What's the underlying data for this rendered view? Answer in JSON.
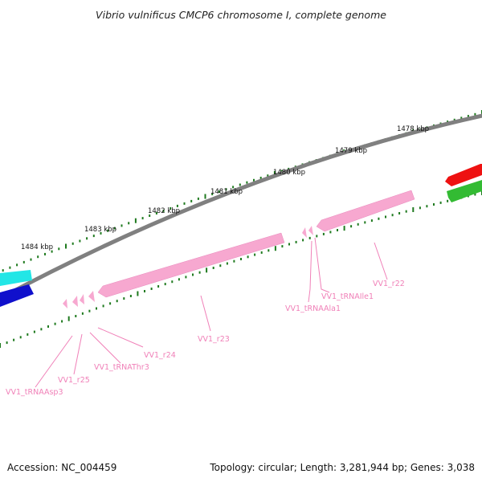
{
  "title": "Vibrio vulnificus CMCP6 chromosome I, complete genome",
  "footer": {
    "accession": "Accession: NC_004459",
    "topology": "Topology: circular; Length: 3,281,944 bp; Genes: 3,038"
  },
  "colors": {
    "background": "#ffffff",
    "backbone": "#808080",
    "tick": "#1f7a1f",
    "rna_feature": "#f7a8d0",
    "rna_label": "#f080b8",
    "feature_cyan": "#22e6e6",
    "feature_blue": "#1010cc",
    "feature_red": "#ee1111",
    "feature_green": "#33bb33"
  },
  "position_labels": [
    "1478 kbp",
    "1479 kbp",
    "1480 kbp",
    "1481 kbp",
    "1482 kbp",
    "1483 kbp",
    "1484 kbp"
  ],
  "gene_labels": [
    "VV1_r22",
    "VV1_tRNAIle1",
    "VV1_tRNAAla1",
    "VV1_r23",
    "VV1_r24",
    "VV1_tRNAThr3",
    "VV1_r25",
    "VV1_tRNAAsp3"
  ]
}
